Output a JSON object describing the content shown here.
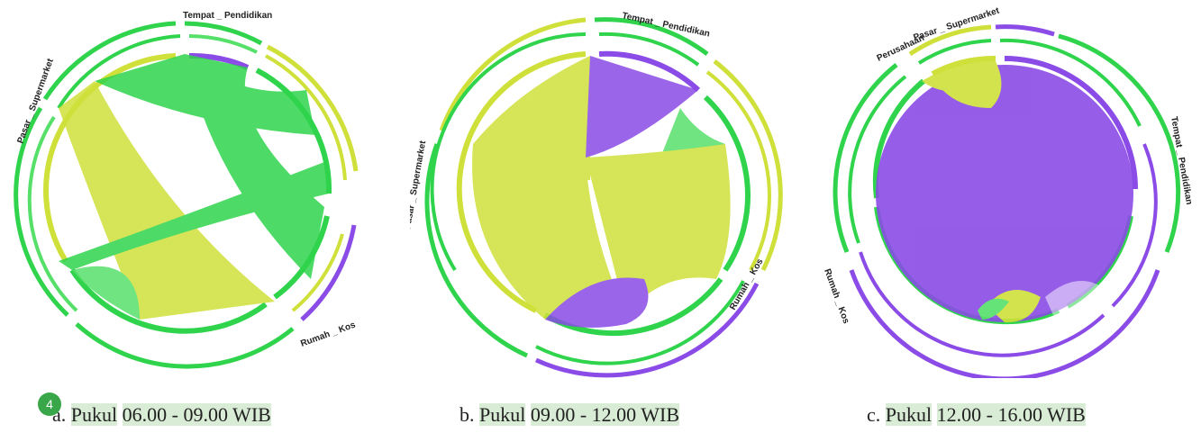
{
  "colors": {
    "green": "#2fd44c",
    "light_green": "#56e06a",
    "yellow_green": "#cfe03a",
    "purple": "#8a4be6",
    "caption_highlight": "#d9ecd6",
    "badge": "#3aa64a"
  },
  "badge": "4",
  "diagrams": [
    {
      "id": "a",
      "caption": {
        "prefix": "a. ",
        "word": "Pukul",
        "time": "06.00 - 09.00 WIB"
      },
      "segments": [
        {
          "label": "Tempat _ Pendidikan"
        },
        {
          "label": "Rumah _ Kos"
        },
        {
          "label": "Pasar _ Supermarket"
        }
      ]
    },
    {
      "id": "b",
      "caption": {
        "prefix": "b. ",
        "word": "Pukul",
        "time": "09.00 - 12.00 WIB"
      },
      "segments": [
        {
          "label": "Tempat _ Pendidikan"
        },
        {
          "label": "Rumah _ Kos"
        },
        {
          "label": "Pasar _ Supermarket"
        }
      ]
    },
    {
      "id": "c",
      "caption": {
        "prefix": "c. ",
        "word": "Pukul",
        "time": "12.00 - 16.00 WIB"
      },
      "segments": [
        {
          "label": "Perusahaan"
        },
        {
          "label": "Pasar _ Supermarket"
        },
        {
          "label": "Tempat _ Pendidikan"
        },
        {
          "label": "Rumah _ Kos"
        }
      ]
    }
  ]
}
